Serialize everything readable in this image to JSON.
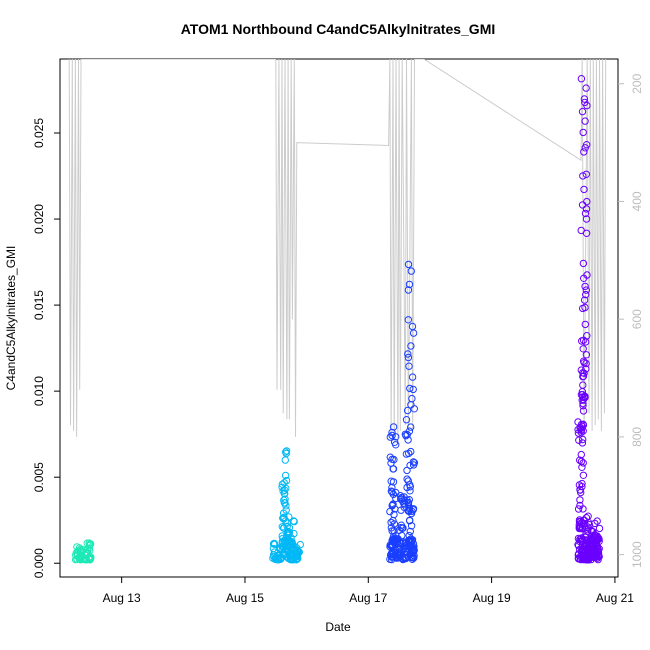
{
  "chart_data": {
    "type": "scatter",
    "title": "ATOM1 Northbound C4andC5Alkylnitrates_GMI",
    "xlabel": "Date",
    "ylabel": "C4andC5Alkylnitrates_GMI",
    "x_range_days": [
      12.0,
      21.05
    ],
    "ylim": [
      -0.0008,
      0.0293
    ],
    "x_ticks": [
      {
        "day": 13,
        "label": "Aug 13"
      },
      {
        "day": 15,
        "label": "Aug 15"
      },
      {
        "day": 17,
        "label": "Aug 17"
      },
      {
        "day": 19,
        "label": "Aug 19"
      },
      {
        "day": 21,
        "label": "Aug 21"
      }
    ],
    "y_ticks": [
      {
        "value": 0.0,
        "label": "0.000"
      },
      {
        "value": 0.005,
        "label": "0.005"
      },
      {
        "value": 0.01,
        "label": "0.010"
      },
      {
        "value": 0.015,
        "label": "0.015"
      },
      {
        "value": 0.02,
        "label": "0.020"
      },
      {
        "value": 0.025,
        "label": "0.025"
      }
    ],
    "right_axis": {
      "quantity": "pressure",
      "range": [
        1038,
        158
      ],
      "ticks": [
        {
          "value": 200,
          "label": "200"
        },
        {
          "value": 400,
          "label": "400"
        },
        {
          "value": 600,
          "label": "600"
        },
        {
          "value": 800,
          "label": "800"
        },
        {
          "value": 1000,
          "label": "1000"
        }
      ],
      "color": "#bdbdbd"
    },
    "flights": [
      {
        "color": "#1de9b6",
        "clusters": [
          {
            "x": [
              12.25,
              12.5
            ],
            "y": [
              0.0002,
              0.0012
            ],
            "n": 60
          }
        ]
      },
      {
        "color": "#00b8f5",
        "clusters": [
          {
            "x": [
              15.45,
              15.9
            ],
            "y": [
              0.0002,
              0.0012
            ],
            "n": 80
          },
          {
            "x": [
              15.6,
              15.68
            ],
            "y": [
              0.0012,
              0.0066
            ],
            "n": 40
          },
          {
            "x": [
              15.68,
              15.8
            ],
            "y": [
              0.001,
              0.0028
            ],
            "n": 25
          }
        ]
      },
      {
        "color": "#1a3fff",
        "clusters": [
          {
            "x": [
              17.35,
              17.75
            ],
            "y": [
              0.0002,
              0.0015
            ],
            "n": 90
          },
          {
            "x": [
              17.35,
              17.45
            ],
            "y": [
              0.001,
              0.0084
            ],
            "n": 45
          },
          {
            "x": [
              17.5,
              17.72
            ],
            "y": [
              0.001,
              0.0045
            ],
            "n": 45
          },
          {
            "x": [
              17.6,
              17.75
            ],
            "y": [
              0.003,
              0.0175
            ],
            "n": 45
          }
        ]
      },
      {
        "color": "#6a00ff",
        "clusters": [
          {
            "x": [
              20.4,
              20.75
            ],
            "y": [
              0.0002,
              0.0015
            ],
            "n": 110
          },
          {
            "x": [
              20.4,
              20.5
            ],
            "y": [
              0.002,
              0.0095
            ],
            "n": 50
          },
          {
            "x": [
              20.45,
              20.55
            ],
            "y": [
              0.0095,
              0.0284
            ],
            "n": 55
          },
          {
            "x": [
              20.5,
              20.75
            ],
            "y": [
              0.0003,
              0.0028
            ],
            "n": 60
          }
        ]
      }
    ],
    "pressure_trace": {
      "color": "#cccccc",
      "points": [
        [
          12.15,
          158
        ],
        [
          12.17,
          780
        ],
        [
          12.2,
          158
        ],
        [
          12.22,
          790
        ],
        [
          12.25,
          158
        ],
        [
          12.27,
          800
        ],
        [
          12.3,
          158
        ],
        [
          12.32,
          720
        ],
        [
          12.34,
          158
        ],
        [
          15.5,
          158
        ],
        [
          15.52,
          720
        ],
        [
          15.55,
          158
        ],
        [
          15.58,
          720
        ],
        [
          15.6,
          158
        ],
        [
          15.62,
          760
        ],
        [
          15.65,
          158
        ],
        [
          15.68,
          770
        ],
        [
          15.7,
          158
        ],
        [
          15.72,
          770
        ],
        [
          15.75,
          158
        ],
        [
          15.77,
          600
        ],
        [
          15.8,
          158
        ],
        [
          15.82,
          800
        ],
        [
          15.84,
          300
        ],
        [
          17.33,
          305
        ],
        [
          17.35,
          158
        ],
        [
          17.37,
          800
        ],
        [
          17.4,
          158
        ],
        [
          17.42,
          810
        ],
        [
          17.45,
          158
        ],
        [
          17.48,
          810
        ],
        [
          17.5,
          158
        ],
        [
          17.52,
          790
        ],
        [
          17.55,
          158
        ],
        [
          17.6,
          780
        ],
        [
          17.62,
          158
        ],
        [
          17.65,
          800
        ],
        [
          17.7,
          158
        ],
        [
          17.72,
          790
        ],
        [
          17.75,
          158
        ],
        [
          17.9,
          158
        ],
        [
          20.45,
          330
        ],
        [
          20.47,
          158
        ],
        [
          20.5,
          800
        ],
        [
          20.55,
          158
        ],
        [
          20.58,
          760
        ],
        [
          20.6,
          158
        ],
        [
          20.63,
          790
        ],
        [
          20.65,
          158
        ],
        [
          20.68,
          780
        ],
        [
          20.7,
          158
        ],
        [
          20.73,
          770
        ],
        [
          20.75,
          158
        ],
        [
          20.78,
          790
        ],
        [
          20.8,
          158
        ],
        [
          20.83,
          760
        ],
        [
          20.85,
          158
        ]
      ]
    }
  }
}
